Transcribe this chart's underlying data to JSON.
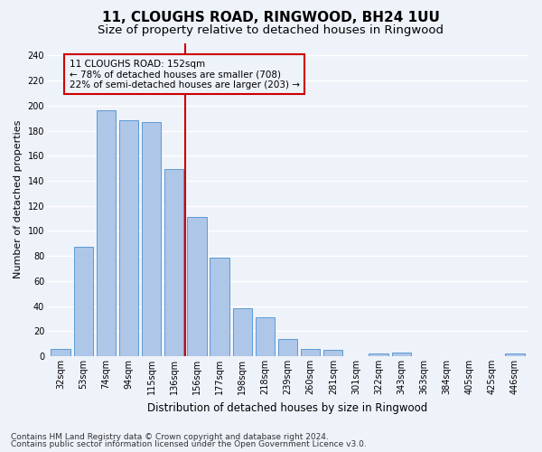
{
  "title1": "11, CLOUGHS ROAD, RINGWOOD, BH24 1UU",
  "title2": "Size of property relative to detached houses in Ringwood",
  "xlabel": "Distribution of detached houses by size in Ringwood",
  "ylabel": "Number of detached properties",
  "categories": [
    "32sqm",
    "53sqm",
    "74sqm",
    "94sqm",
    "115sqm",
    "136sqm",
    "156sqm",
    "177sqm",
    "198sqm",
    "218sqm",
    "239sqm",
    "260sqm",
    "281sqm",
    "301sqm",
    "322sqm",
    "343sqm",
    "363sqm",
    "384sqm",
    "405sqm",
    "425sqm",
    "446sqm"
  ],
  "values": [
    6,
    87,
    196,
    188,
    187,
    149,
    111,
    79,
    38,
    31,
    14,
    6,
    5,
    0,
    2,
    3,
    0,
    0,
    0,
    0,
    2
  ],
  "bar_color": "#aec6e8",
  "bar_edge_color": "#5b9bd5",
  "vline_x_index": 6,
  "vline_color": "#cc0000",
  "annotation_text": "11 CLOUGHS ROAD: 152sqm\n← 78% of detached houses are smaller (708)\n22% of semi-detached houses are larger (203) →",
  "annotation_box_color": "#cc0000",
  "ylim": [
    0,
    250
  ],
  "yticks": [
    0,
    20,
    40,
    60,
    80,
    100,
    120,
    140,
    160,
    180,
    200,
    220,
    240
  ],
  "footer1": "Contains HM Land Registry data © Crown copyright and database right 2024.",
  "footer2": "Contains public sector information licensed under the Open Government Licence v3.0.",
  "bg_color": "#eef2f9",
  "grid_color": "#ffffff",
  "title_fontsize": 11,
  "subtitle_fontsize": 9.5,
  "ylabel_fontsize": 8,
  "xlabel_fontsize": 8.5,
  "tick_fontsize": 7,
  "annotation_fontsize": 7.5,
  "footer_fontsize": 6.5
}
